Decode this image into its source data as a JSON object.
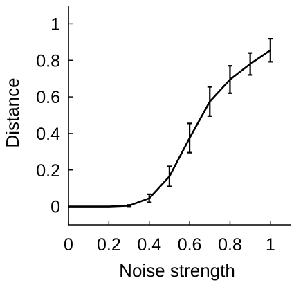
{
  "chart_data": {
    "type": "line",
    "xlabel": "Noise strength",
    "ylabel": "Distance",
    "xlim": [
      0,
      1.1
    ],
    "ylim": [
      -0.1,
      1.1
    ],
    "xticks": [
      0,
      0.2,
      0.4,
      0.6,
      0.8,
      1
    ],
    "xtick_labels": [
      "0",
      "0.2",
      "0.4",
      "0.6",
      "0.8",
      "1"
    ],
    "yticks": [
      0,
      0.2,
      0.4,
      0.6,
      0.8,
      1
    ],
    "ytick_labels": [
      "0",
      "0.2",
      "0.4",
      "0.6",
      "0.8",
      "1"
    ],
    "grid": false,
    "legend": "none",
    "line_color": "#000000",
    "series": [
      {
        "x": [
          0,
          0.1,
          0.2,
          0.3,
          0.4,
          0.5,
          0.6,
          0.7,
          0.8,
          0.9,
          1.0
        ],
        "y": [
          0,
          0,
          0,
          0.005,
          0.045,
          0.165,
          0.375,
          0.575,
          0.695,
          0.78,
          0.855
        ],
        "err": [
          0,
          0,
          0,
          0.004,
          0.022,
          0.055,
          0.08,
          0.08,
          0.075,
          0.06,
          0.063
        ]
      }
    ]
  }
}
